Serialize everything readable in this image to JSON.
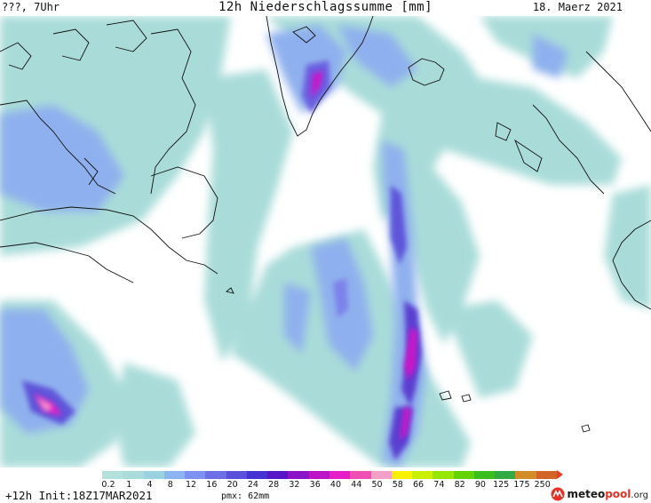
{
  "header": {
    "left": "???, 7Uhr",
    "title": "12h Niederschlagssumme [mm]",
    "date": "18. Maerz 2021"
  },
  "legend": {
    "ticks": [
      "0.2",
      "1",
      "4",
      "8",
      "12",
      "16",
      "20",
      "24",
      "28",
      "32",
      "36",
      "40",
      "44",
      "50",
      "58",
      "66",
      "74",
      "82",
      "90",
      "125",
      "175",
      "250"
    ],
    "colors": [
      "#b4e1dc",
      "#aadcdc",
      "#9bd2e1",
      "#8cb4f0",
      "#7d91f0",
      "#6e6ee6",
      "#5a50dc",
      "#4632d2",
      "#5a14c8",
      "#8c14c8",
      "#be14c8",
      "#e61ec8",
      "#f050b4",
      "#f5a0c8",
      "#faf000",
      "#c8f000",
      "#96e600",
      "#64d200",
      "#3cbe1e",
      "#32aa46",
      "#d28c28",
      "#d26428"
    ],
    "over_color": "#ee3a2a"
  },
  "footer": {
    "init": "+12h Init:18Z17MAR2021",
    "pmx": "pmx: 62mm"
  },
  "brand": {
    "part1": "meteo",
    "part2": "pool",
    "part3": ".org"
  }
}
